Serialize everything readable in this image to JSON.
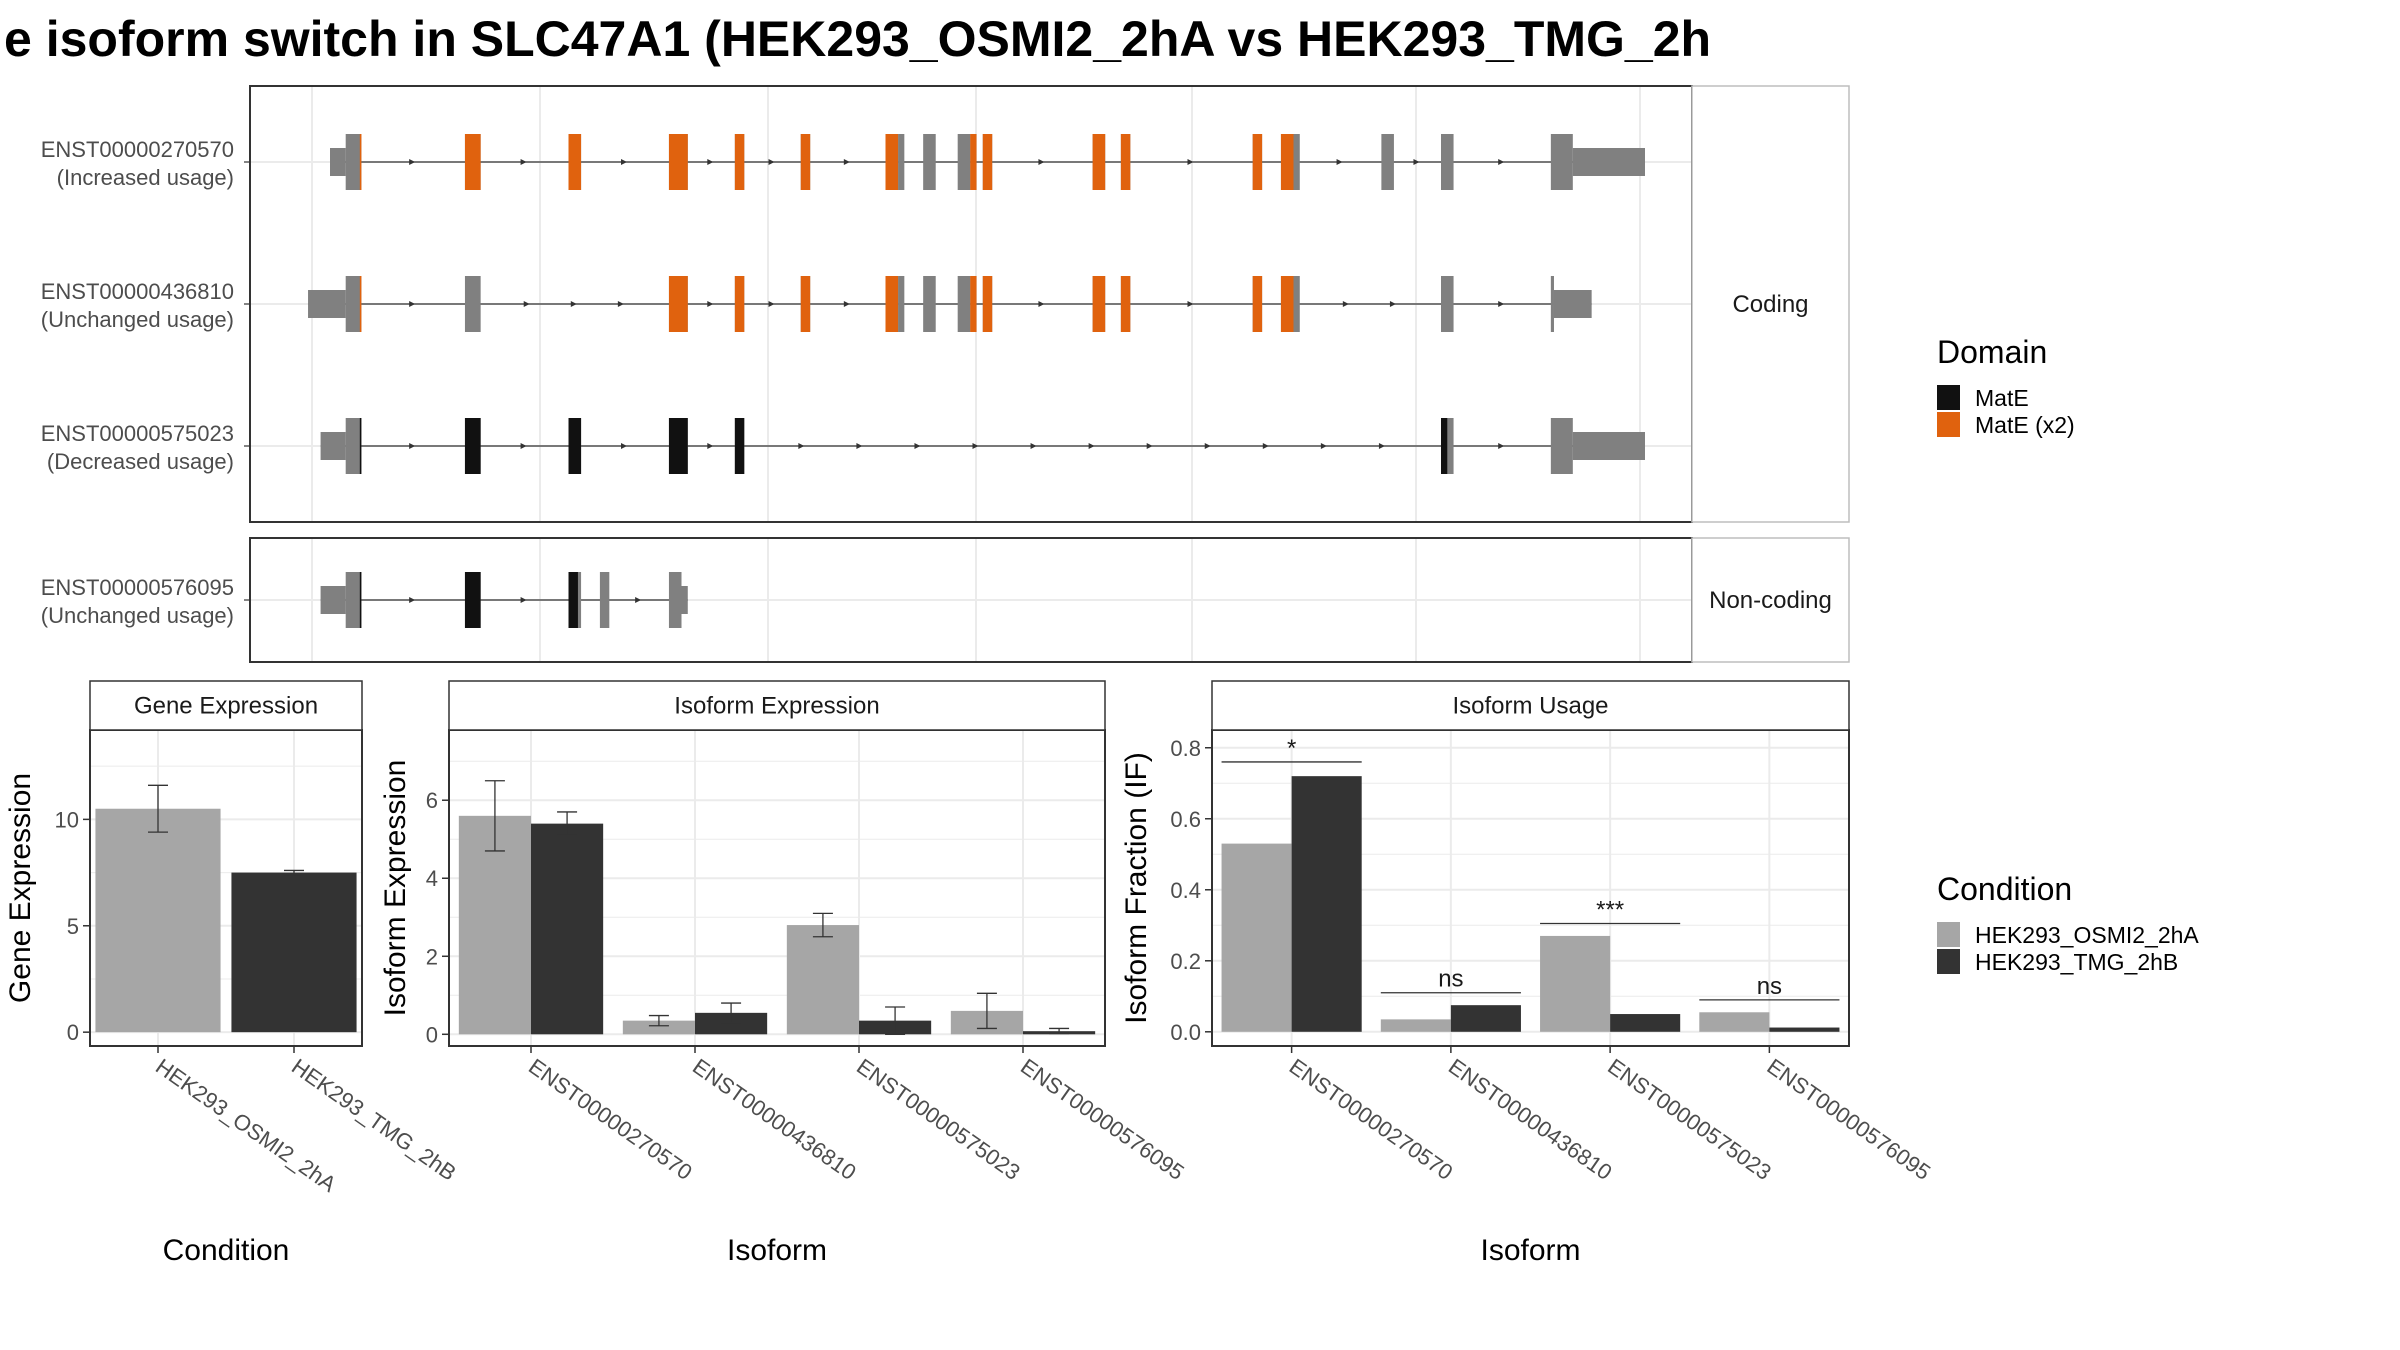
{
  "title": "e isoform switch in SLC47A1 (HEK293_OSMI2_2hA vs HEK293_TMG_2h",
  "colors": {
    "mate": "#111111",
    "mate_x2": "#e0620e",
    "exon": "#808080",
    "condA": "#a6a6a6",
    "condB": "#333333",
    "grid": "#ebebeb",
    "frame": "#333333",
    "strip_border": "#bdbdbd"
  },
  "structure": {
    "panels": [
      {
        "label": "Coding",
        "isoforms": [
          {
            "id": "ENST00000270570",
            "usage": "(Increased usage)",
            "exons": [
              {
                "s": 0,
                "e": 5,
                "h": "u"
              },
              {
                "s": 5,
                "e": 10,
                "h": "c"
              },
              {
                "s": 43,
                "e": 48,
                "h": "c"
              },
              {
                "s": 76,
                "e": 80,
                "h": "c"
              },
              {
                "s": 108,
                "e": 114,
                "h": "c"
              },
              {
                "s": 129,
                "e": 132,
                "h": "c"
              },
              {
                "s": 150,
                "e": 153,
                "h": "c"
              },
              {
                "s": 177,
                "e": 181,
                "h": "c"
              },
              {
                "s": 181,
                "e": 183,
                "h": "c"
              },
              {
                "s": 189,
                "e": 193,
                "h": "c"
              },
              {
                "s": 200,
                "e": 204,
                "h": "c"
              },
              {
                "s": 204,
                "e": 206,
                "h": "c"
              },
              {
                "s": 208,
                "e": 211,
                "h": "c"
              },
              {
                "s": 243,
                "e": 247,
                "h": "c"
              },
              {
                "s": 252,
                "e": 255,
                "h": "c"
              },
              {
                "s": 294,
                "e": 297,
                "h": "c"
              },
              {
                "s": 303,
                "e": 307,
                "h": "c"
              },
              {
                "s": 307,
                "e": 309,
                "h": "c"
              },
              {
                "s": 335,
                "e": 339,
                "h": "c"
              },
              {
                "s": 354,
                "e": 358,
                "h": "c"
              },
              {
                "s": 389,
                "e": 396,
                "h": "c"
              },
              {
                "s": 396,
                "e": 419,
                "h": "u"
              }
            ],
            "domains": [
              {
                "s": 9.5,
                "e": 10,
                "d": "x2"
              },
              {
                "s": 43,
                "e": 48,
                "d": "x2"
              },
              {
                "s": 76,
                "e": 80,
                "d": "x2"
              },
              {
                "s": 108,
                "e": 114,
                "d": "x2"
              },
              {
                "s": 129,
                "e": 132,
                "d": "x2"
              },
              {
                "s": 150,
                "e": 153,
                "d": "x2"
              },
              {
                "s": 177,
                "e": 181,
                "d": "x2"
              },
              {
                "s": 204,
                "e": 206,
                "d": "x2"
              },
              {
                "s": 208,
                "e": 211,
                "d": "x2"
              },
              {
                "s": 243,
                "e": 247,
                "d": "x2"
              },
              {
                "s": 252,
                "e": 255,
                "d": "x2"
              },
              {
                "s": 294,
                "e": 297,
                "d": "x2"
              },
              {
                "s": 303,
                "e": 307,
                "d": "x2"
              }
            ]
          },
          {
            "id": "ENST00000436810",
            "usage": "(Unchanged usage)",
            "exons": [
              {
                "s": -7,
                "e": 5,
                "h": "u"
              },
              {
                "s": 5,
                "e": 10,
                "h": "c"
              },
              {
                "s": 43,
                "e": 48,
                "h": "c"
              },
              {
                "s": 108,
                "e": 114,
                "h": "c"
              },
              {
                "s": 129,
                "e": 132,
                "h": "c"
              },
              {
                "s": 150,
                "e": 153,
                "h": "c"
              },
              {
                "s": 177,
                "e": 181,
                "h": "c"
              },
              {
                "s": 181,
                "e": 183,
                "h": "c"
              },
              {
                "s": 189,
                "e": 193,
                "h": "c"
              },
              {
                "s": 200,
                "e": 204,
                "h": "c"
              },
              {
                "s": 204,
                "e": 206,
                "h": "c"
              },
              {
                "s": 208,
                "e": 211,
                "h": "c"
              },
              {
                "s": 243,
                "e": 247,
                "h": "c"
              },
              {
                "s": 252,
                "e": 255,
                "h": "c"
              },
              {
                "s": 294,
                "e": 297,
                "h": "c"
              },
              {
                "s": 303,
                "e": 307,
                "h": "c"
              },
              {
                "s": 307,
                "e": 309,
                "h": "c"
              },
              {
                "s": 354,
                "e": 358,
                "h": "c"
              },
              {
                "s": 389,
                "e": 390,
                "h": "c"
              },
              {
                "s": 390,
                "e": 402,
                "h": "u"
              }
            ],
            "domains": [
              {
                "s": 9.5,
                "e": 10,
                "d": "x2"
              },
              {
                "s": 108,
                "e": 114,
                "d": "x2"
              },
              {
                "s": 129,
                "e": 132,
                "d": "x2"
              },
              {
                "s": 150,
                "e": 153,
                "d": "x2"
              },
              {
                "s": 177,
                "e": 181,
                "d": "x2"
              },
              {
                "s": 204,
                "e": 206,
                "d": "x2"
              },
              {
                "s": 208,
                "e": 211,
                "d": "x2"
              },
              {
                "s": 243,
                "e": 247,
                "d": "x2"
              },
              {
                "s": 252,
                "e": 255,
                "d": "x2"
              },
              {
                "s": 294,
                "e": 297,
                "d": "x2"
              },
              {
                "s": 303,
                "e": 307,
                "d": "x2"
              }
            ]
          },
          {
            "id": "ENST00000575023",
            "usage": "(Decreased usage)",
            "exons": [
              {
                "s": -3,
                "e": 5,
                "h": "u"
              },
              {
                "s": 5,
                "e": 10,
                "h": "c"
              },
              {
                "s": 43,
                "e": 48,
                "h": "c"
              },
              {
                "s": 76,
                "e": 80,
                "h": "c"
              },
              {
                "s": 108,
                "e": 114,
                "h": "c"
              },
              {
                "s": 129,
                "e": 132,
                "h": "c"
              },
              {
                "s": 354,
                "e": 358,
                "h": "c"
              },
              {
                "s": 389,
                "e": 396,
                "h": "c"
              },
              {
                "s": 396,
                "e": 419,
                "h": "u"
              }
            ],
            "domains": [
              {
                "s": 9.5,
                "e": 10,
                "d": "m"
              },
              {
                "s": 43,
                "e": 48,
                "d": "m"
              },
              {
                "s": 76,
                "e": 80,
                "d": "m"
              },
              {
                "s": 108,
                "e": 114,
                "d": "m"
              },
              {
                "s": 129,
                "e": 132,
                "d": "m"
              },
              {
                "s": 354,
                "e": 356,
                "d": "m"
              }
            ]
          }
        ]
      },
      {
        "label": "Non-coding",
        "isoforms": [
          {
            "id": "ENST00000576095",
            "usage": "(Unchanged usage)",
            "exons": [
              {
                "s": -3,
                "e": 5,
                "h": "u"
              },
              {
                "s": 5,
                "e": 10,
                "h": "c"
              },
              {
                "s": 43,
                "e": 48,
                "h": "c"
              },
              {
                "s": 76,
                "e": 80,
                "h": "c"
              },
              {
                "s": 86,
                "e": 89,
                "h": "c"
              },
              {
                "s": 108,
                "e": 112,
                "h": "c"
              },
              {
                "s": 112,
                "e": 114,
                "h": "u"
              }
            ],
            "domains": [
              {
                "s": 9.5,
                "e": 10,
                "d": "m"
              },
              {
                "s": 43,
                "e": 48,
                "d": "m"
              },
              {
                "s": 76,
                "e": 79,
                "d": "m"
              }
            ]
          }
        ]
      }
    ]
  },
  "legend_domain": {
    "title": "Domain",
    "items": [
      {
        "label": "MatE",
        "color": "#111111"
      },
      {
        "label": "MatE (x2)",
        "color": "#e0620e"
      }
    ]
  },
  "legend_condition": {
    "title": "Condition",
    "items": [
      {
        "label": "HEK293_OSMI2_2hA",
        "color": "#a6a6a6"
      },
      {
        "label": "HEK293_TMG_2hB",
        "color": "#333333"
      }
    ]
  },
  "chart_data": [
    {
      "type": "bar",
      "title": "Gene Expression",
      "xlabel": "Condition",
      "ylabel": "Gene Expression",
      "categories": [
        "HEK293_OSMI2_2hA",
        "HEK293_TMG_2hB"
      ],
      "values": [
        10.5,
        7.5
      ],
      "errors": [
        [
          9.4,
          11.6
        ],
        [
          7.4,
          7.6
        ]
      ],
      "ylim": [
        -0.65,
        14.2
      ],
      "yticks": [
        0,
        5,
        10
      ]
    },
    {
      "type": "bar",
      "title": "Isoform Expression",
      "xlabel": "Isoform",
      "ylabel": "Isoform Expression",
      "categories": [
        "ENST00000270570",
        "ENST00000436810",
        "ENST00000575023",
        "ENST00000576095"
      ],
      "series": [
        {
          "name": "HEK293_OSMI2_2hA",
          "values": [
            5.6,
            0.35,
            2.8,
            0.6
          ],
          "errors": [
            [
              4.7,
              6.5
            ],
            [
              0.22,
              0.48
            ],
            [
              2.5,
              3.1
            ],
            [
              0.15,
              1.05
            ]
          ]
        },
        {
          "name": "HEK293_TMG_2hB",
          "values": [
            5.4,
            0.55,
            0.35,
            0.08
          ],
          "errors": [
            [
              5.1,
              5.7
            ],
            [
              0.3,
              0.8
            ],
            [
              0.0,
              0.7
            ],
            [
              0.02,
              0.15
            ]
          ]
        }
      ],
      "ylim": [
        -0.3,
        7.8
      ],
      "yticks": [
        0,
        2,
        4,
        6
      ]
    },
    {
      "type": "bar",
      "title": "Isoform Usage",
      "xlabel": "Isoform",
      "ylabel": "Isoform Fraction (IF)",
      "categories": [
        "ENST00000270570",
        "ENST00000436810",
        "ENST00000575023",
        "ENST00000576095"
      ],
      "series": [
        {
          "name": "HEK293_OSMI2_2hA",
          "values": [
            0.53,
            0.035,
            0.27,
            0.055
          ]
        },
        {
          "name": "HEK293_TMG_2hB",
          "values": [
            0.72,
            0.075,
            0.05,
            0.012
          ]
        }
      ],
      "significance": [
        "*",
        "ns",
        "***",
        "ns"
      ],
      "significance_y": [
        0.76,
        0.11,
        0.305,
        0.09
      ],
      "ylim": [
        -0.04,
        0.85
      ],
      "yticks": [
        0.0,
        0.2,
        0.4,
        0.6,
        0.8
      ]
    }
  ]
}
